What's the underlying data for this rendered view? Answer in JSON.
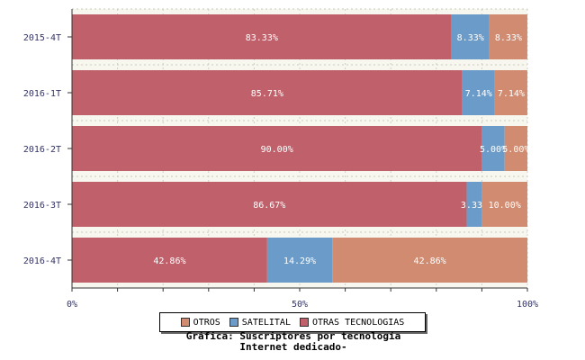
{
  "chart_data": {
    "type": "bar",
    "orientation": "horizontal",
    "stacked": true,
    "categories": [
      "2015-4T",
      "2016-1T",
      "2016-2T",
      "2016-3T",
      "2016-4T"
    ],
    "series": [
      {
        "name": "OTRAS TECNOLOGIAS",
        "color": "#c0606a",
        "values": [
          83.33,
          85.71,
          90.0,
          86.67,
          42.86
        ]
      },
      {
        "name": "SATELITAL",
        "color": "#6b9bc8",
        "values": [
          8.33,
          7.14,
          5.0,
          3.33,
          14.29
        ]
      },
      {
        "name": "OTROS",
        "color": "#d08b70",
        "values": [
          8.33,
          7.14,
          5.0,
          10.0,
          42.86
        ]
      }
    ],
    "labels": [
      [
        "83.33%",
        "8.33%",
        "8.33%"
      ],
      [
        "85.71%",
        "7.14%",
        "7.14%"
      ],
      [
        "90.00%",
        "5.00%",
        "5.00%"
      ],
      [
        "86.67%",
        "3.33%",
        "10.00%"
      ],
      [
        "42.86%",
        "14.29%",
        "42.86%"
      ]
    ],
    "xticks": [
      "0%",
      "50%",
      "100%"
    ],
    "xlim": [
      0,
      100
    ],
    "grid": true,
    "legend_position": "bottom",
    "legend": [
      "OTROS",
      "SATELITAL",
      "OTRAS TECNOLOGIAS"
    ],
    "title_lines": [
      "Gráfica: Suscriptores por tecnología",
      "Internet dedicado-"
    ]
  }
}
